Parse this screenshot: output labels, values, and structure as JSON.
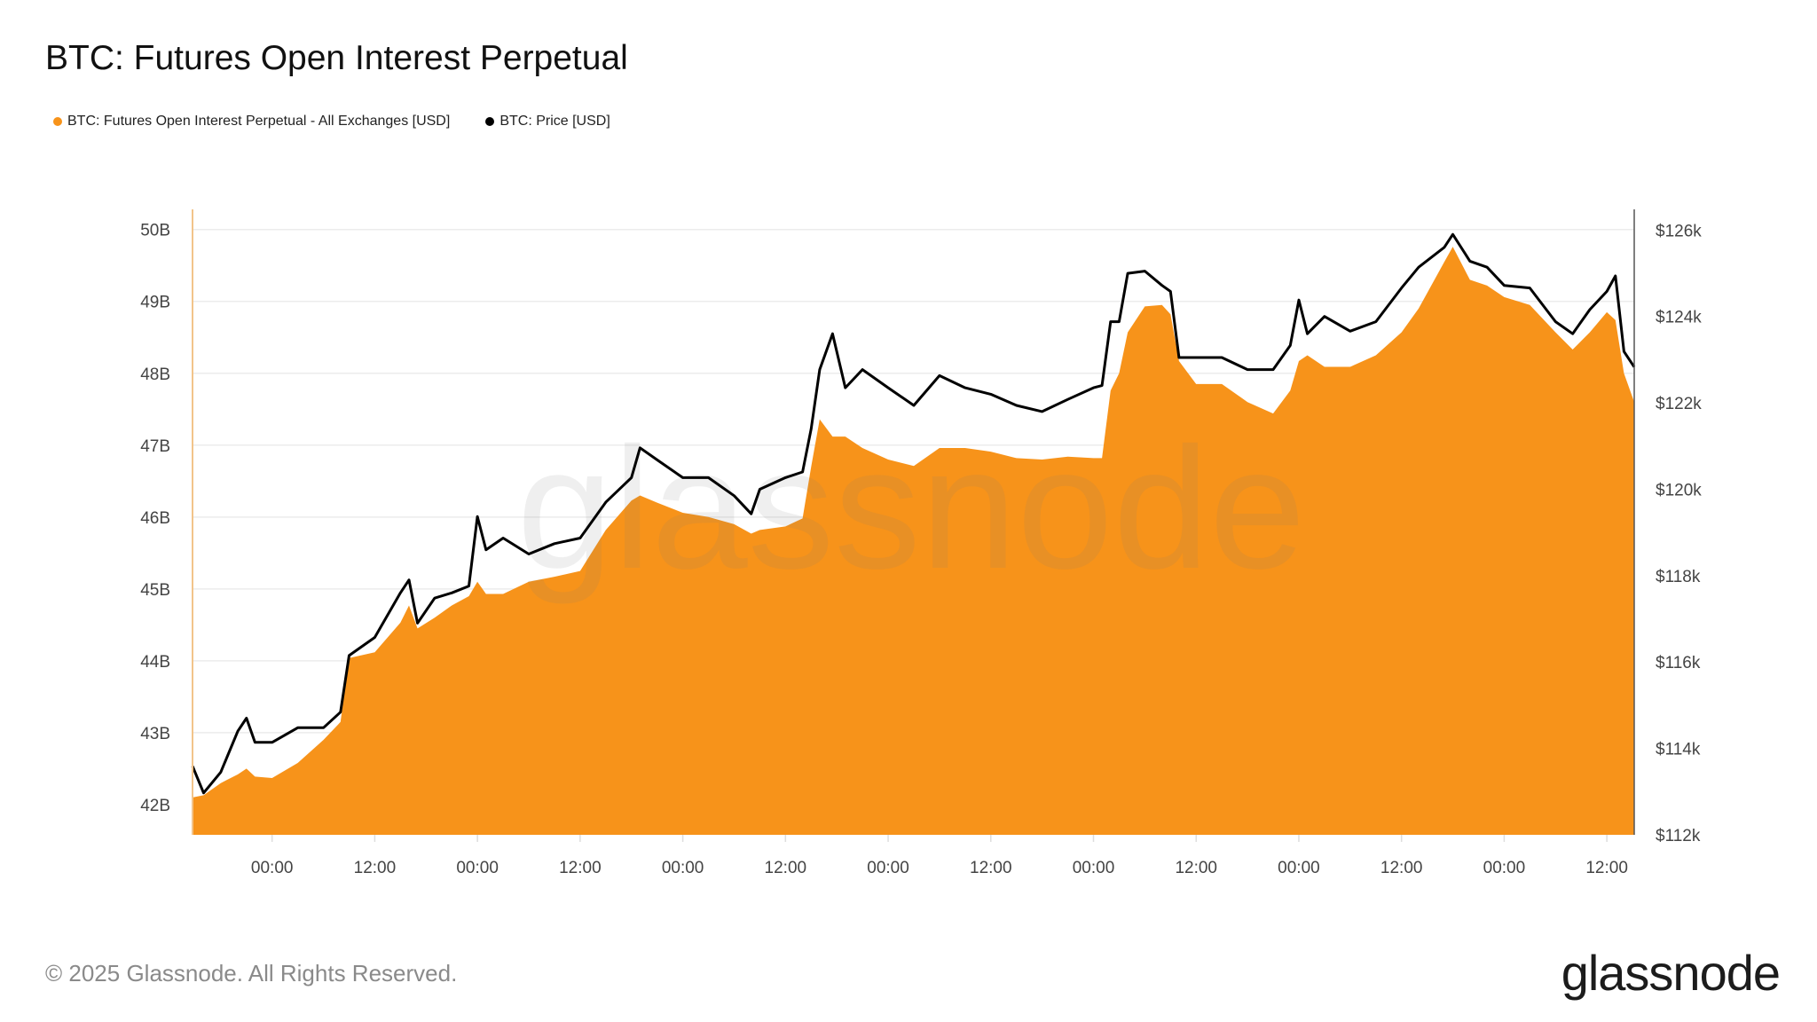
{
  "title": "BTC: Futures Open Interest Perpetual",
  "footer": "© 2025 Glassnode. All Rights Reserved.",
  "logo": "glassnode",
  "watermark": "glassnode",
  "chart_data": {
    "type": "area+line",
    "title": "BTC: Futures Open Interest Perpetual",
    "legend_position": "top-left",
    "grid": true,
    "x_unit": "hours from first 00:00 tick",
    "x_ticks": [
      "00:00",
      "12:00",
      "00:00",
      "12:00",
      "00:00",
      "12:00",
      "00:00",
      "12:00",
      "00:00",
      "12:00",
      "00:00",
      "12:00",
      "00:00",
      "12:00"
    ],
    "x_tick_hours": [
      0,
      12,
      24,
      36,
      48,
      60,
      72,
      84,
      96,
      108,
      120,
      132,
      144,
      156
    ],
    "xlim": [
      -9.3,
      159.2
    ],
    "y_left": {
      "ticks": [
        "42B",
        "43B",
        "44B",
        "45B",
        "46B",
        "47B",
        "48B",
        "49B",
        "50B"
      ],
      "tick_values": [
        42,
        43,
        44,
        45,
        46,
        47,
        48,
        49,
        50
      ],
      "lim": [
        41.58,
        50.28
      ],
      "unit": "B USD"
    },
    "y_right": {
      "ticks": [
        "$112k",
        "$114k",
        "$116k",
        "$118k",
        "$120k",
        "$122k",
        "$124k",
        "$126k"
      ],
      "tick_values": [
        112,
        114,
        116,
        118,
        120,
        122,
        124,
        126
      ],
      "lim": [
        112,
        126.48
      ],
      "unit": "k USD"
    },
    "series": [
      {
        "name": "BTC: Futures Open Interest Perpetual - All Exchanges [USD]",
        "type": "area",
        "axis": "left",
        "color": "#f7931a",
        "points": [
          [
            -9.3,
            42.1
          ],
          [
            -8,
            42.13
          ],
          [
            -6,
            42.3
          ],
          [
            -4,
            42.42
          ],
          [
            -3,
            42.5
          ],
          [
            -2,
            42.39
          ],
          [
            0,
            42.37
          ],
          [
            3,
            42.58
          ],
          [
            6,
            42.9
          ],
          [
            8,
            43.15
          ],
          [
            9,
            44.04
          ],
          [
            12,
            44.12
          ],
          [
            15,
            44.53
          ],
          [
            16,
            44.77
          ],
          [
            17,
            44.45
          ],
          [
            19,
            44.6
          ],
          [
            21,
            44.77
          ],
          [
            23,
            44.9
          ],
          [
            24,
            45.1
          ],
          [
            25,
            44.93
          ],
          [
            27,
            44.93
          ],
          [
            30,
            45.1
          ],
          [
            33,
            45.17
          ],
          [
            36,
            45.25
          ],
          [
            39,
            45.82
          ],
          [
            42,
            46.23
          ],
          [
            43,
            46.3
          ],
          [
            45,
            46.2
          ],
          [
            48,
            46.06
          ],
          [
            51,
            46.0
          ],
          [
            54,
            45.9
          ],
          [
            56,
            45.77
          ],
          [
            57,
            45.82
          ],
          [
            60,
            45.87
          ],
          [
            62,
            45.98
          ],
          [
            63,
            46.7
          ],
          [
            64,
            47.36
          ],
          [
            65.5,
            47.12
          ],
          [
            67,
            47.12
          ],
          [
            69,
            46.96
          ],
          [
            72,
            46.8
          ],
          [
            75,
            46.71
          ],
          [
            78,
            46.96
          ],
          [
            81,
            46.96
          ],
          [
            84,
            46.91
          ],
          [
            87,
            46.82
          ],
          [
            90,
            46.8
          ],
          [
            93,
            46.84
          ],
          [
            96,
            46.82
          ],
          [
            97,
            46.82
          ],
          [
            98,
            47.76
          ],
          [
            99,
            48.0
          ],
          [
            100,
            48.57
          ],
          [
            102,
            48.93
          ],
          [
            104,
            48.95
          ],
          [
            105,
            48.82
          ],
          [
            106,
            48.17
          ],
          [
            108,
            47.85
          ],
          [
            111,
            47.85
          ],
          [
            114,
            47.6
          ],
          [
            117,
            47.44
          ],
          [
            119,
            47.76
          ],
          [
            120,
            48.17
          ],
          [
            121,
            48.25
          ],
          [
            123,
            48.09
          ],
          [
            126,
            48.09
          ],
          [
            129,
            48.25
          ],
          [
            132,
            48.57
          ],
          [
            134,
            48.9
          ],
          [
            137,
            49.55
          ],
          [
            138,
            49.76
          ],
          [
            140,
            49.3
          ],
          [
            142,
            49.22
          ],
          [
            144,
            49.06
          ],
          [
            147,
            48.95
          ],
          [
            150,
            48.57
          ],
          [
            152,
            48.33
          ],
          [
            154,
            48.57
          ],
          [
            156,
            48.85
          ],
          [
            157,
            48.74
          ],
          [
            158,
            48.0
          ],
          [
            159.2,
            47.6
          ]
        ]
      },
      {
        "name": "BTC: Price [USD]",
        "type": "line",
        "axis": "right",
        "color": "#000000",
        "points": [
          [
            -9.3,
            113.59
          ],
          [
            -8,
            112.97
          ],
          [
            -6,
            113.45
          ],
          [
            -4,
            114.4
          ],
          [
            -3,
            114.7
          ],
          [
            -2,
            114.14
          ],
          [
            0,
            114.14
          ],
          [
            3,
            114.48
          ],
          [
            6,
            114.48
          ],
          [
            8,
            114.84
          ],
          [
            9,
            116.15
          ],
          [
            12,
            116.57
          ],
          [
            15,
            117.6
          ],
          [
            16,
            117.9
          ],
          [
            17,
            116.9
          ],
          [
            19,
            117.48
          ],
          [
            21,
            117.6
          ],
          [
            23,
            117.76
          ],
          [
            24,
            119.37
          ],
          [
            25,
            118.6
          ],
          [
            27,
            118.87
          ],
          [
            30,
            118.5
          ],
          [
            33,
            118.74
          ],
          [
            36,
            118.87
          ],
          [
            39,
            119.7
          ],
          [
            42,
            120.27
          ],
          [
            43,
            120.96
          ],
          [
            45,
            120.68
          ],
          [
            48,
            120.27
          ],
          [
            51,
            120.27
          ],
          [
            54,
            119.85
          ],
          [
            56,
            119.43
          ],
          [
            57,
            120.0
          ],
          [
            60,
            120.27
          ],
          [
            62,
            120.4
          ],
          [
            63,
            121.4
          ],
          [
            64,
            122.77
          ],
          [
            65.5,
            123.6
          ],
          [
            67,
            122.35
          ],
          [
            69,
            122.77
          ],
          [
            72,
            122.35
          ],
          [
            75,
            121.94
          ],
          [
            78,
            122.63
          ],
          [
            81,
            122.35
          ],
          [
            84,
            122.2
          ],
          [
            87,
            121.94
          ],
          [
            90,
            121.8
          ],
          [
            93,
            122.08
          ],
          [
            96,
            122.35
          ],
          [
            97,
            122.4
          ],
          [
            98,
            123.88
          ],
          [
            99,
            123.88
          ],
          [
            100,
            125.0
          ],
          [
            102,
            125.05
          ],
          [
            104,
            124.72
          ],
          [
            105,
            124.58
          ],
          [
            106,
            123.05
          ],
          [
            108,
            123.05
          ],
          [
            111,
            123.05
          ],
          [
            114,
            122.77
          ],
          [
            117,
            122.77
          ],
          [
            119,
            123.33
          ],
          [
            120,
            124.38
          ],
          [
            121,
            123.6
          ],
          [
            123,
            124.0
          ],
          [
            126,
            123.66
          ],
          [
            129,
            123.88
          ],
          [
            132,
            124.66
          ],
          [
            134,
            125.14
          ],
          [
            137,
            125.6
          ],
          [
            138,
            125.9
          ],
          [
            140,
            125.28
          ],
          [
            142,
            125.14
          ],
          [
            144,
            124.72
          ],
          [
            147,
            124.66
          ],
          [
            150,
            123.88
          ],
          [
            152,
            123.6
          ],
          [
            154,
            124.16
          ],
          [
            156,
            124.58
          ],
          [
            157,
            124.94
          ],
          [
            158,
            123.19
          ],
          [
            159.2,
            122.83
          ]
        ]
      }
    ]
  }
}
